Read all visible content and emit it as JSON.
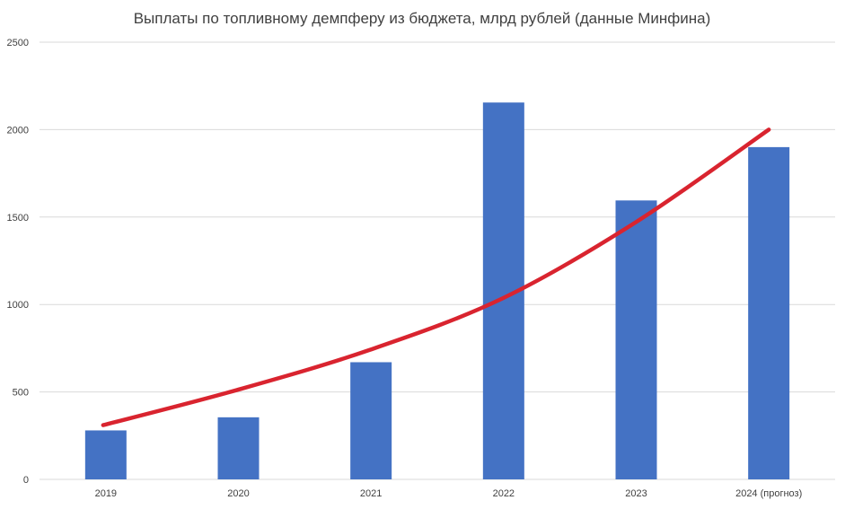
{
  "chart_data": {
    "type": "bar",
    "title": "Выплаты по топливному демпферу из бюджета, млрд рублей (данные Минфина)",
    "xlabel": "",
    "ylabel": "",
    "ylim": [
      0,
      2500
    ],
    "yticks": [
      0,
      500,
      1000,
      1500,
      2000,
      2500
    ],
    "grid": true,
    "categories": [
      "2019",
      "2020",
      "2021",
      "2022",
      "2023",
      "2024 (прогноз)"
    ],
    "series": [
      {
        "name": "Выплаты",
        "color": "#4472c4",
        "values": [
          280,
          355,
          670,
          2155,
          1595,
          1900
        ]
      }
    ],
    "trend": {
      "type": "exponential",
      "color": "#d9242f",
      "values": [
        310,
        510,
        740,
        1035,
        1470,
        2000
      ]
    }
  }
}
